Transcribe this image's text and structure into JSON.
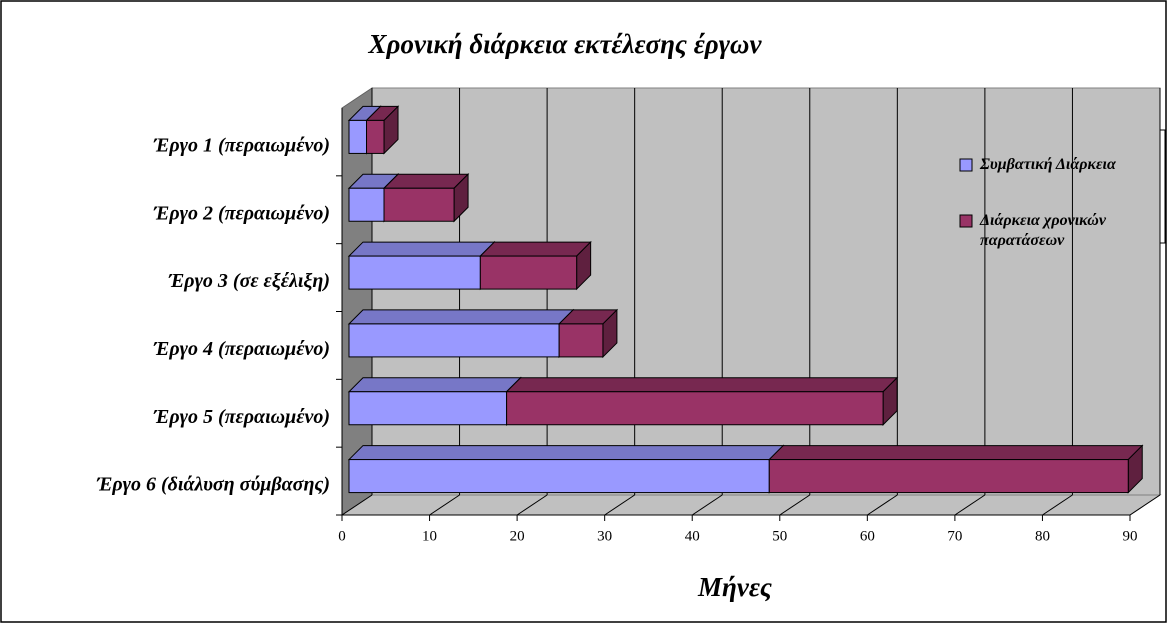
{
  "chart_data": {
    "type": "bar",
    "orientation": "horizontal",
    "stacked": true,
    "title": "Χρονική διάρκεια εκτέλεσης έργων",
    "x_label": "Μήνες",
    "categories": [
      "Έργο 1 (περαιωμένο)",
      "Έργο 2 (περαιωμένο)",
      "Έργο 3 (σε εξέλιξη)",
      "Έργο 4 (περαιωμένο)",
      "Έργο 5 (περαιωμένο)",
      "Έργο 6 (διάλυση σύμβασης)"
    ],
    "series": [
      {
        "name": "Συμβατική Διάρκεια",
        "color": "#9999ff",
        "values": [
          2,
          4,
          15,
          24,
          18,
          48
        ]
      },
      {
        "name": "Διάρκεια χρονικών παρατάσεων",
        "color": "#993366",
        "values": [
          2,
          8,
          11,
          5,
          43,
          41
        ]
      }
    ],
    "xlim": [
      0,
      90
    ],
    "xticks": [
      0,
      10,
      20,
      30,
      40,
      50,
      60,
      70,
      80,
      90
    ],
    "grid": true,
    "legend": "right"
  }
}
